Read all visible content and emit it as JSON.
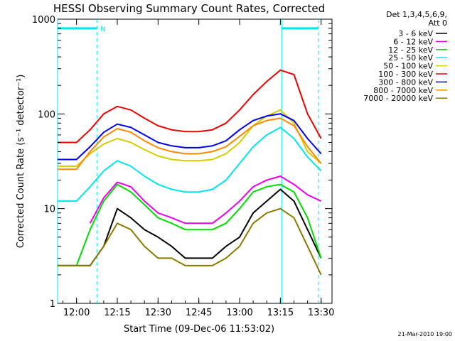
{
  "chart_data": {
    "type": "line",
    "title": "HESSI Observing Summary Count Rates, Corrected",
    "xlabel": "Start Time (09-Dec-06 11:53:02)",
    "ylabel": "Corrected Count Rate (s⁻¹ detector⁻¹)",
    "y_scale": "log",
    "ylim": [
      1,
      1000
    ],
    "xlim": [
      "11:53:02",
      "13:34:00"
    ],
    "x_ticks": [
      "12:00",
      "12:15",
      "12:30",
      "12:45",
      "13:00",
      "13:15",
      "13:30"
    ],
    "y_ticks": [
      "1",
      "10",
      "100",
      "1000"
    ],
    "legend_title": [
      "Det 1,3,4,5,6,9,",
      "Att 0"
    ],
    "legend_position": "right",
    "footer": "21-Mar-2010 19:00",
    "night_marker": "N",
    "night_color": "#00e5ee",
    "night_intervals": [
      [
        "11:53:02",
        "12:07:30"
      ],
      [
        "13:15:30",
        "13:29:00"
      ]
    ],
    "night_boundaries_dashed": [
      "12:07:30",
      "13:29:00"
    ],
    "x": [
      "11:53",
      "12:00",
      "12:05",
      "12:10",
      "12:15",
      "12:20",
      "12:25",
      "12:30",
      "12:35",
      "12:40",
      "12:45",
      "12:50",
      "12:55",
      "13:00",
      "13:05",
      "13:10",
      "13:15",
      "13:20",
      "13:25",
      "13:30"
    ],
    "series": [
      {
        "name": "3 - 6 keV",
        "color": "#000000",
        "values": [
          2.5,
          2.5,
          2.5,
          4,
          10,
          8,
          6,
          5,
          4,
          3,
          3,
          3,
          4,
          5,
          9,
          12,
          16,
          12,
          6,
          3
        ]
      },
      {
        "name": "6 - 12 keV",
        "color": "#ee00ee",
        "values": [
          null,
          null,
          7,
          13,
          19,
          17,
          12,
          9,
          8,
          7,
          7,
          7,
          9,
          12,
          17,
          20,
          22,
          18,
          14,
          12
        ]
      },
      {
        "name": "12 - 25 keV",
        "color": "#00dd00",
        "values": [
          2.5,
          2.5,
          6,
          12,
          18,
          15,
          11,
          8,
          7,
          6,
          6,
          6,
          7,
          10,
          15,
          17,
          18,
          15,
          8,
          3
        ]
      },
      {
        "name": "25 - 50 keV",
        "color": "#00e5ee",
        "values": [
          12,
          12,
          17,
          25,
          32,
          28,
          22,
          18,
          16,
          15,
          15,
          16,
          20,
          30,
          45,
          60,
          72,
          55,
          35,
          25
        ]
      },
      {
        "name": "50 - 100 keV",
        "color": "#d4cc00",
        "values": [
          28,
          28,
          38,
          48,
          55,
          50,
          42,
          36,
          33,
          32,
          32,
          33,
          38,
          50,
          75,
          95,
          110,
          80,
          40,
          30
        ]
      },
      {
        "name": "100 - 300 keV",
        "color": "#ee0000",
        "values": [
          50,
          50,
          68,
          100,
          120,
          110,
          90,
          75,
          68,
          65,
          65,
          68,
          80,
          110,
          160,
          220,
          290,
          260,
          100,
          55
        ]
      },
      {
        "name": "300 - 800 keV",
        "color": "#0000ee",
        "values": [
          33,
          33,
          45,
          64,
          78,
          72,
          60,
          50,
          46,
          44,
          44,
          46,
          52,
          68,
          85,
          95,
          100,
          85,
          55,
          38
        ]
      },
      {
        "name": "800 - 7000 keV",
        "color": "#ff8800",
        "values": [
          26,
          26,
          40,
          57,
          70,
          64,
          52,
          44,
          40,
          38,
          38,
          40,
          45,
          58,
          75,
          85,
          90,
          75,
          45,
          30
        ]
      },
      {
        "name": "7000 - 20000 keV",
        "color": "#8a7a00",
        "values": [
          2.5,
          2.5,
          2.5,
          4,
          7,
          6,
          4,
          3,
          3,
          2.5,
          2.5,
          2.5,
          3,
          4,
          7,
          9,
          10,
          8,
          4,
          2
        ]
      }
    ]
  }
}
